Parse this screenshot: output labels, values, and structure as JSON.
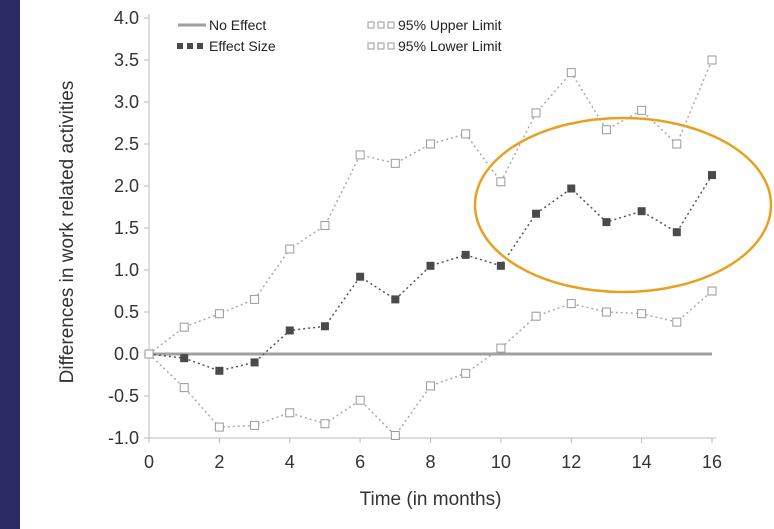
{
  "chart_data": {
    "type": "line",
    "title": "",
    "xlabel": "Time (in months)",
    "ylabel": "Differences in work related activities",
    "xlim": [
      0,
      16
    ],
    "ylim": [
      -1.0,
      4.0
    ],
    "x_ticks": [
      "0",
      "2",
      "4",
      "6",
      "8",
      "10",
      "12",
      "14",
      "16"
    ],
    "y_ticks": [
      "4.0",
      "3.5",
      "3.0",
      "2.5",
      "2.0",
      "1.5",
      "1.0",
      "0.5",
      "0.0",
      "-0.5",
      "-1.0"
    ],
    "x": [
      0,
      1,
      2,
      3,
      4,
      5,
      6,
      7,
      8,
      9,
      10,
      11,
      12,
      13,
      14,
      15,
      16
    ],
    "series": [
      {
        "name": "No Effect",
        "style": "solid",
        "color": "#a0a0a0",
        "values": [
          0,
          0,
          0,
          0,
          0,
          0,
          0,
          0,
          0,
          0,
          0,
          0,
          0,
          0,
          0,
          0,
          0
        ]
      },
      {
        "name": "Effect Size",
        "style": "dotted-filled-square",
        "color": "#555555",
        "values": [
          0.0,
          -0.05,
          -0.2,
          -0.1,
          0.28,
          0.33,
          0.92,
          0.65,
          1.05,
          1.18,
          1.05,
          1.67,
          1.97,
          1.57,
          1.7,
          1.45,
          2.13
        ]
      },
      {
        "name": "95% Upper Limit",
        "style": "dotted-open-square",
        "color": "#aaaaaa",
        "values": [
          0.0,
          0.32,
          0.48,
          0.65,
          1.25,
          1.53,
          2.37,
          2.27,
          2.5,
          2.62,
          2.05,
          2.87,
          3.35,
          2.67,
          2.9,
          2.5,
          3.5
        ]
      },
      {
        "name": "95% Lower Limit",
        "style": "dotted-open-square",
        "color": "#aaaaaa",
        "values": [
          0.0,
          -0.4,
          -0.87,
          -0.85,
          -0.7,
          -0.83,
          -0.55,
          -0.97,
          -0.38,
          -0.23,
          0.07,
          0.45,
          0.6,
          0.5,
          0.48,
          0.38,
          0.75
        ]
      }
    ],
    "legend": {
      "placement": "top"
    },
    "annotation": {
      "type": "ellipse",
      "color": "#e8a020"
    }
  }
}
